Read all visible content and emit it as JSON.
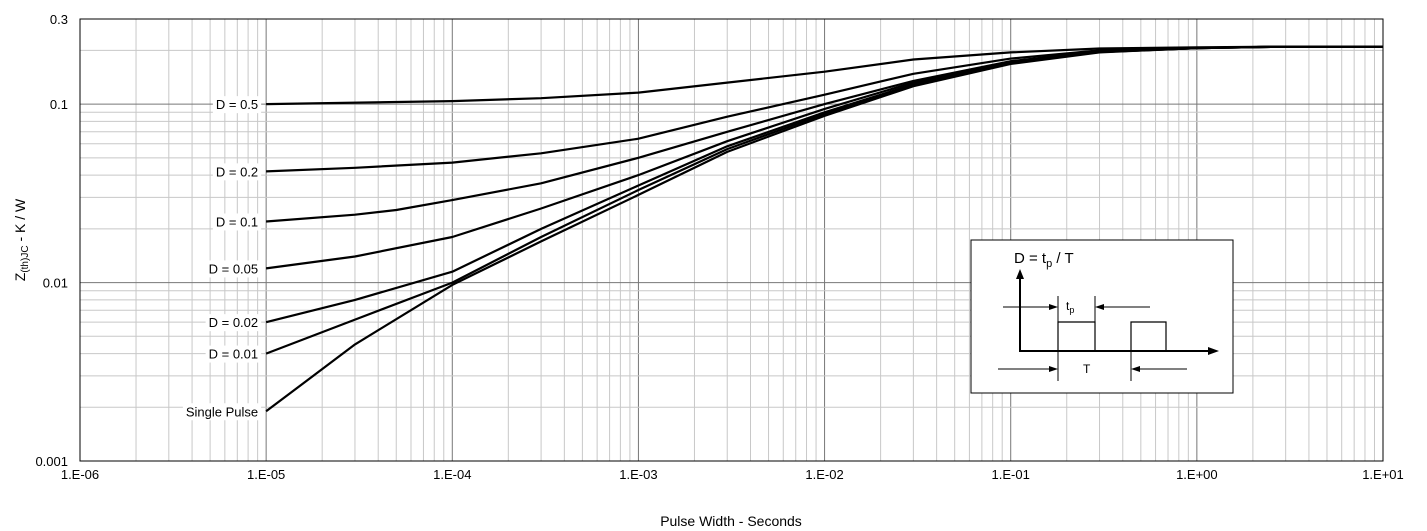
{
  "chart_data": {
    "type": "line",
    "xlabel": "Pulse Width - Seconds",
    "ylabel_main": "Z",
    "ylabel_sub": "(th)JC",
    "ylabel_rest": " - K / W",
    "x_scale": "log",
    "y_scale": "log",
    "xlim": [
      1e-06,
      10
    ],
    "ylim": [
      0.001,
      0.3
    ],
    "x_tick_values": [
      1e-06,
      1e-05,
      0.0001,
      0.001,
      0.01,
      0.1,
      1,
      10
    ],
    "x_tick_labels": [
      "1.E-06",
      "1.E-05",
      "1.E-04",
      "1.E-03",
      "1.E-02",
      "1.E-01",
      "1.E+00",
      "1.E+01"
    ],
    "y_tick_values": [
      0.001,
      0.01,
      0.1,
      0.3
    ],
    "y_tick_labels": [
      "0.001",
      "0.01",
      "0.1",
      "0.3"
    ],
    "grid": true,
    "legend": "labels at left of each curve",
    "series": [
      {
        "name": "D = 0.5",
        "x": [
          1e-05,
          0.0001,
          0.0003,
          0.001,
          0.003,
          0.01,
          0.03,
          0.1,
          0.3,
          1,
          3,
          10
        ],
        "values": [
          0.1,
          0.104,
          0.108,
          0.116,
          0.132,
          0.152,
          0.178,
          0.195,
          0.205,
          0.208,
          0.21,
          0.21
        ]
      },
      {
        "name": "D = 0.2",
        "x": [
          1e-05,
          3e-05,
          0.0001,
          0.0003,
          0.001,
          0.003,
          0.01,
          0.03,
          0.1,
          0.3,
          1,
          3,
          10
        ],
        "values": [
          0.042,
          0.044,
          0.047,
          0.053,
          0.064,
          0.085,
          0.113,
          0.148,
          0.18,
          0.2,
          0.207,
          0.21,
          0.21
        ]
      },
      {
        "name": "D = 0.1",
        "x": [
          1e-05,
          3e-05,
          5e-05,
          0.0001,
          0.0003,
          0.001,
          0.003,
          0.01,
          0.03,
          0.1,
          0.3,
          1,
          3,
          10
        ],
        "values": [
          0.022,
          0.024,
          0.0255,
          0.029,
          0.036,
          0.05,
          0.07,
          0.1,
          0.135,
          0.174,
          0.198,
          0.207,
          0.21,
          0.21
        ]
      },
      {
        "name": "D = 0.05",
        "x": [
          1e-05,
          3e-05,
          0.0001,
          0.0003,
          0.001,
          0.003,
          0.01,
          0.03,
          0.1,
          0.3,
          1,
          3,
          10
        ],
        "values": [
          0.012,
          0.014,
          0.018,
          0.026,
          0.04,
          0.062,
          0.094,
          0.132,
          0.172,
          0.197,
          0.206,
          0.21,
          0.21
        ]
      },
      {
        "name": "D = 0.02",
        "x": [
          1e-05,
          3e-05,
          0.0001,
          0.0003,
          0.001,
          0.003,
          0.01,
          0.03,
          0.1,
          0.3,
          1,
          3,
          10
        ],
        "values": [
          0.006,
          0.008,
          0.0115,
          0.02,
          0.035,
          0.058,
          0.09,
          0.129,
          0.17,
          0.196,
          0.206,
          0.21,
          0.21
        ]
      },
      {
        "name": "D = 0.01",
        "x": [
          1e-05,
          3e-05,
          0.0001,
          0.0003,
          0.001,
          0.003,
          0.01,
          0.03,
          0.1,
          0.3,
          1,
          3,
          10
        ],
        "values": [
          0.004,
          0.0062,
          0.01,
          0.018,
          0.033,
          0.056,
          0.088,
          0.128,
          0.169,
          0.196,
          0.206,
          0.21,
          0.21
        ]
      },
      {
        "name": "Single Pulse",
        "x": [
          1e-05,
          3e-05,
          0.0001,
          0.0003,
          0.001,
          0.003,
          0.01,
          0.03,
          0.1,
          0.3,
          1,
          3,
          10
        ],
        "values": [
          0.0019,
          0.0045,
          0.0097,
          0.017,
          0.031,
          0.054,
          0.086,
          0.126,
          0.168,
          0.195,
          0.206,
          0.21,
          0.21
        ]
      }
    ]
  },
  "inset": {
    "formula_prefix": "D = t",
    "formula_sub": "p",
    "formula_suffix": " / T",
    "tp_main": "t",
    "tp_sub": "p",
    "period_label": "T"
  }
}
